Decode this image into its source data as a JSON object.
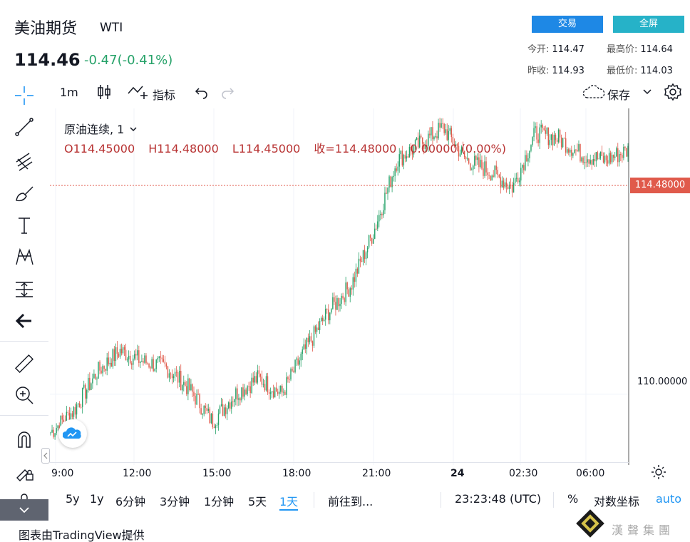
{
  "header": {
    "title": "美油期货",
    "symbol": "WTI",
    "price": "114.46",
    "change": "-0.47(-0.41%)",
    "trade_button": "交易",
    "fullscreen_button": "全屏",
    "open_label": "今开:",
    "open_value": "114.47",
    "high_label": "最高价:",
    "high_value": "114.64",
    "prev_close_label": "昨收:",
    "prev_close_value": "114.93",
    "low_label": "最低价:",
    "low_value": "114.03"
  },
  "toolbar": {
    "interval": "1m",
    "indicators": "指标",
    "save": "保存"
  },
  "legend": {
    "series_name": "原油连续, 1",
    "open": "O114.45000",
    "high": "H114.48000",
    "low": "L114.45000",
    "close": "收=114.48000",
    "change": "0.00000 (0.00%)"
  },
  "price_axis": {
    "last_price_tag": "114.48000",
    "level_label": "110.00000"
  },
  "time_axis": {
    "labels": [
      "9:00",
      "12:00",
      "15:00",
      "18:00",
      "21:00",
      "24",
      "02:30",
      "06:00"
    ]
  },
  "bottom_bar": {
    "ranges": [
      "5y",
      "1y",
      "6分钟",
      "3分钟",
      "1分钟",
      "5天",
      "1天"
    ],
    "active_range": "1天",
    "goto": "前往到...",
    "clock": "23:23:48 (UTC)",
    "percent": "%",
    "log_scale": "对数坐标",
    "auto": "auto"
  },
  "footer": {
    "credit": "图表由TradingView提供",
    "brand": "漢聲集團"
  },
  "colors": {
    "up": "#26a269",
    "down": "#e05a4b",
    "accent": "#2196f3",
    "trade_button": "#1e88e5",
    "fullscreen_button": "#26b2c8"
  },
  "chart_data": {
    "type": "candlestick",
    "title": "原油连续, 1",
    "x_labels": [
      "9:00",
      "12:00",
      "15:00",
      "18:00",
      "21:00",
      "24",
      "02:30",
      "06:00"
    ],
    "y_tick_labels": [
      "110.00000"
    ],
    "last_price": 114.48,
    "approx_path": [
      {
        "x": "9:00",
        "y": 109.3
      },
      {
        "x": "10:00",
        "y": 109.7
      },
      {
        "x": "11:00",
        "y": 110.4
      },
      {
        "x": "11:30",
        "y": 110.8
      },
      {
        "x": "12:00",
        "y": 110.6
      },
      {
        "x": "13:00",
        "y": 110.5
      },
      {
        "x": "14:00",
        "y": 110.1
      },
      {
        "x": "14:45",
        "y": 109.5
      },
      {
        "x": "15:30",
        "y": 110.0
      },
      {
        "x": "17:00",
        "y": 110.3
      },
      {
        "x": "17:45",
        "y": 110.0
      },
      {
        "x": "18:00",
        "y": 110.8
      },
      {
        "x": "19:00",
        "y": 111.5
      },
      {
        "x": "20:00",
        "y": 112.0
      },
      {
        "x": "21:00",
        "y": 113.0
      },
      {
        "x": "21:30",
        "y": 114.3
      },
      {
        "x": "22:30",
        "y": 114.6
      },
      {
        "x": "23:30",
        "y": 114.9
      },
      {
        "x": "24",
        "y": 114.3
      },
      {
        "x": "01:00",
        "y": 114.1
      },
      {
        "x": "02:00",
        "y": 113.8
      },
      {
        "x": "02:30",
        "y": 114.8
      },
      {
        "x": "04:00",
        "y": 114.7
      },
      {
        "x": "05:00",
        "y": 114.4
      },
      {
        "x": "06:00",
        "y": 114.3
      },
      {
        "x": "07:00",
        "y": 114.48
      }
    ]
  }
}
